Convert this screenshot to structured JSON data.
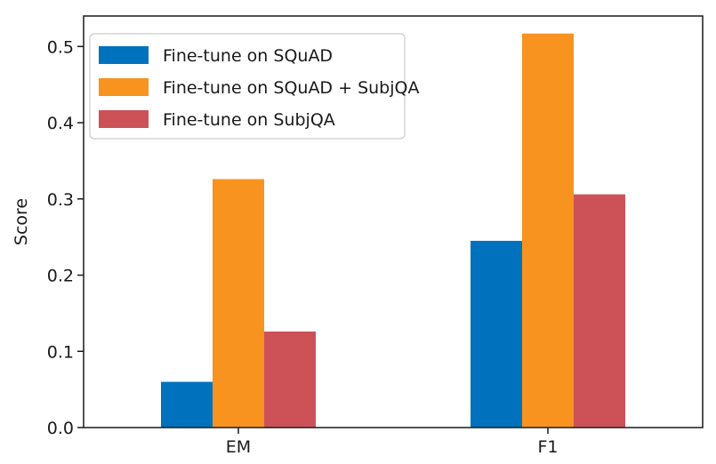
{
  "chart_data": {
    "type": "bar",
    "title": "",
    "xlabel": "",
    "ylabel": "Score",
    "categories": [
      "EM",
      "F1"
    ],
    "ylim": [
      0,
      0.54
    ],
    "yticks": [
      0.0,
      0.1,
      0.2,
      0.3,
      0.4,
      0.5
    ],
    "ytick_labels": [
      "0.0",
      "0.1",
      "0.2",
      "0.3",
      "0.4",
      "0.5"
    ],
    "grid": false,
    "legend_position": "top-left",
    "series": [
      {
        "name": "Fine-tune on SQuAD",
        "color": "#0072bd",
        "values": [
          0.06,
          0.245
        ]
      },
      {
        "name": "Fine-tune on SQuAD + SubjQA",
        "color": "#f7931e",
        "values": [
          0.326,
          0.517
        ]
      },
      {
        "name": "Fine-tune on SubjQA",
        "color": "#cd5257",
        "values": [
          0.126,
          0.306
        ]
      }
    ]
  }
}
